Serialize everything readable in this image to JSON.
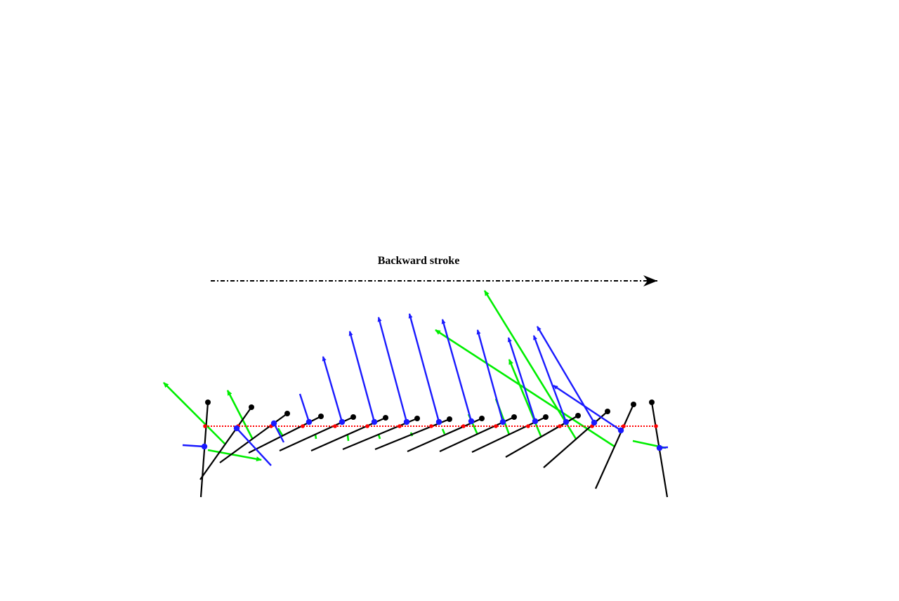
{
  "title": "Backward stroke",
  "colors": {
    "wing": "#000000",
    "leading_edge_marker": "#000000",
    "pivot": "#1a1aff",
    "velocity_vector": "#1a1aff",
    "force_vector": "#00ee00",
    "stroke_path": "#ff0000",
    "direction_arrow": "#000000"
  }
}
